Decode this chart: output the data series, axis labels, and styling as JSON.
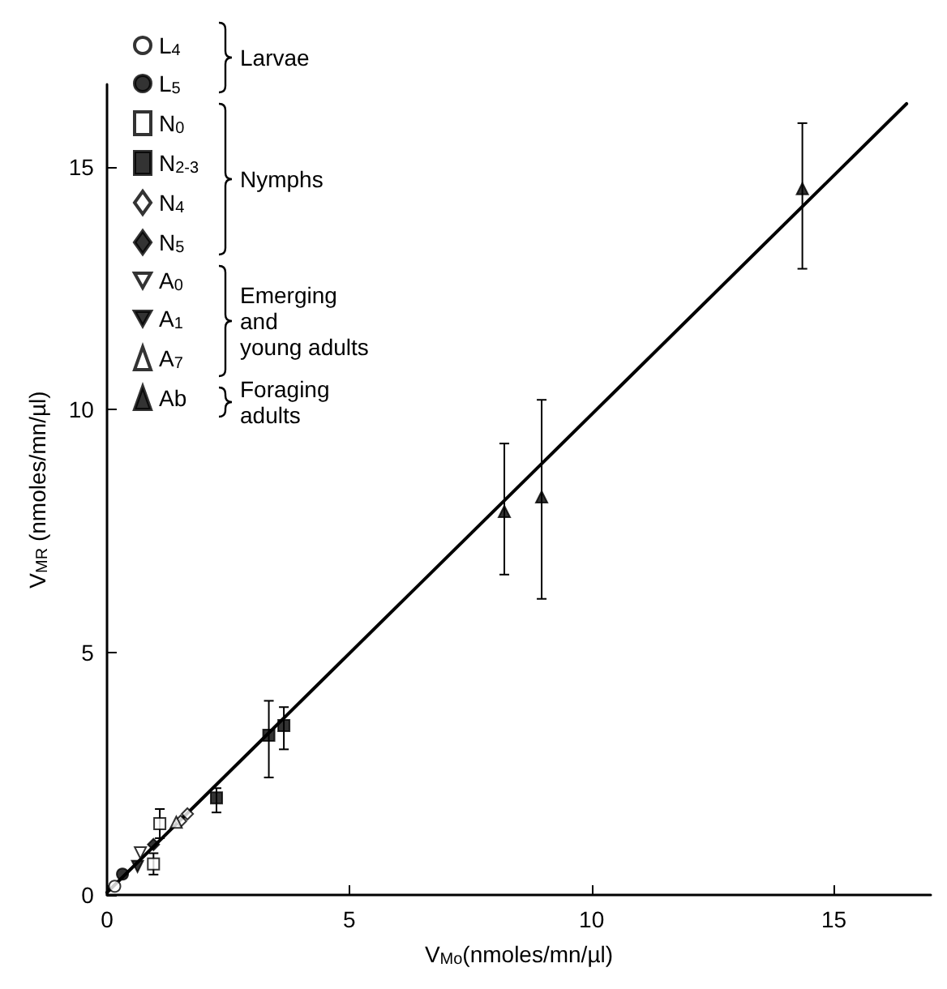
{
  "chart_data": {
    "type": "scatter",
    "xlabel": "V$_{Mo}$(nmoles/mn/µl)",
    "ylabel": "V$_{MR}$ (nmoles/mn/µl)",
    "xlim": [
      0,
      17
    ],
    "ylim": [
      0,
      16.7
    ],
    "xticks": [
      0,
      5,
      10,
      15
    ],
    "yticks": [
      0,
      5,
      10,
      15
    ],
    "grid": false,
    "legend": "top left",
    "annotations": [
      "Larvae",
      "Nymphs",
      "Emerging\nand\nyoung adults",
      "Foraging\nadults"
    ],
    "series": [
      {
        "name": "L$_{4}$",
        "marker": "circle",
        "color": "#ffffff",
        "x": [
          0.16
        ],
        "values": [
          0.18
        ]
      },
      {
        "name": "L$_{5}$",
        "marker": "circle",
        "color": "#000000",
        "x": [
          0.32
        ],
        "values": [
          0.43
        ]
      },
      {
        "name": "N$_{0}$",
        "marker": "square",
        "color": "#ffffff",
        "x": [
          1.09,
          0.96
        ],
        "values": [
          1.47,
          0.64
        ],
        "errors": [
          0.3,
          0.22
        ]
      },
      {
        "name": "N$_{2-3}$",
        "marker": "square",
        "color": "#000000",
        "x": [
          2.26,
          3.34,
          3.65
        ],
        "values": [
          2.0,
          3.29,
          3.49
        ],
        "errors": [
          [
            1.7,
            2.2
          ],
          [
            2.42,
            4.0
          ],
          [
            3.0,
            3.87
          ]
        ]
      },
      {
        "name": "N$_{4}$",
        "marker": "diamond",
        "color": "#ffffff",
        "x": [
          1.52,
          1.66
        ],
        "values": [
          1.52,
          1.67
        ]
      },
      {
        "name": "N$_{5}$",
        "marker": "diamond",
        "color": "#000000",
        "x": [
          0.96
        ],
        "values": [
          1.04
        ]
      },
      {
        "name": "A$_{0}$",
        "marker": "triangle-down",
        "color": "#ffffff",
        "x": [
          0.69
        ],
        "values": [
          0.87
        ]
      },
      {
        "name": "A$_{1}$",
        "marker": "triangle-down",
        "color": "#000000",
        "x": [
          0.63
        ],
        "values": [
          0.59
        ]
      },
      {
        "name": "A$_{7}$",
        "marker": "triangle",
        "color": "#ffffff",
        "x": [
          1.43
        ],
        "values": [
          1.5
        ]
      },
      {
        "name": "Ab",
        "marker": "triangle",
        "color": "#000000",
        "x": [
          8.2,
          8.97,
          14.35
        ],
        "values": [
          7.9,
          8.2,
          14.55
        ],
        "errors": [
          [
            6.6,
            9.3
          ],
          [
            6.1,
            10.2
          ],
          [
            12.9,
            15.9
          ]
        ]
      },
      {
        "type": "line",
        "marker": "none",
        "color": "#000000",
        "x": [
          0,
          16.5
        ],
        "values": [
          0.05,
          16.3
        ]
      }
    ]
  }
}
